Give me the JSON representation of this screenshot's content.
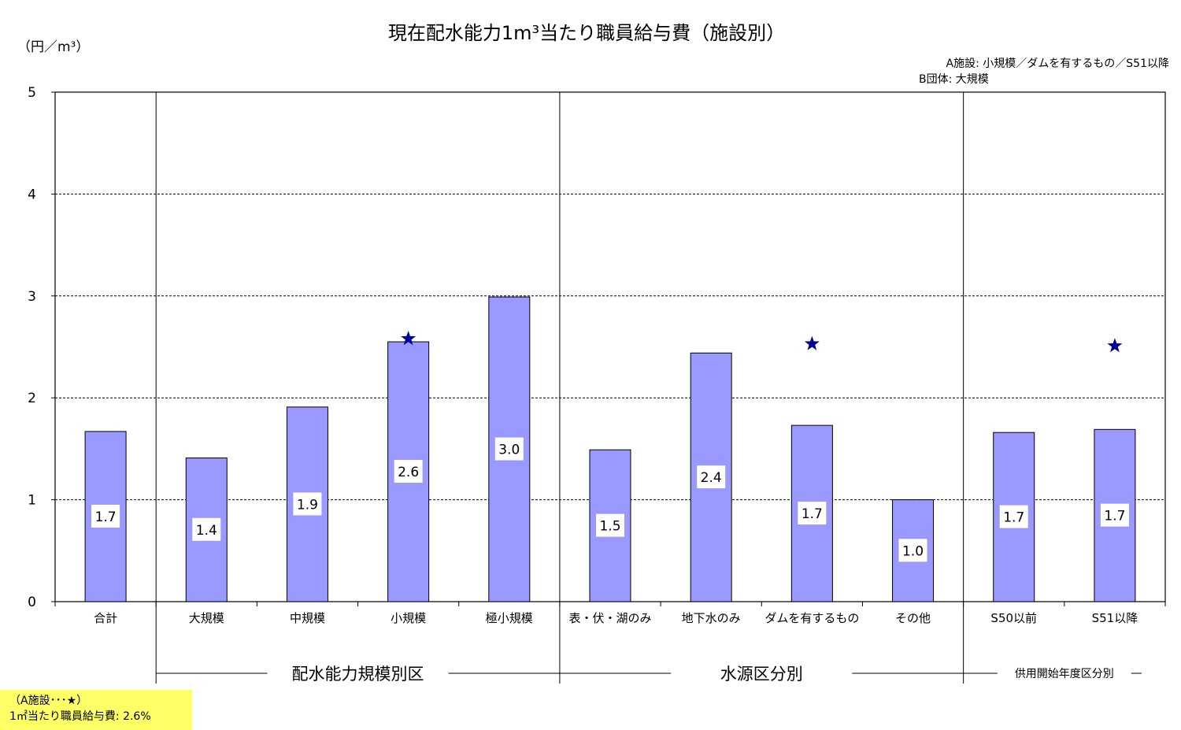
{
  "chart_data": {
    "type": "bar",
    "title": "現在配水能力1m³当たり職員給与費（施設別）",
    "ylabel": "（円／m³）",
    "ylim": [
      0,
      5
    ],
    "yticks": [
      "0",
      "1",
      "2",
      "3",
      "4",
      "5"
    ],
    "grid": true,
    "categories": [
      "合計",
      "大規模",
      "中規模",
      "小規模",
      "極小規模",
      "表・伏・湖のみ",
      "地下水のみ",
      "ダムを有するもの",
      "その他",
      "S50以前",
      "S51以降"
    ],
    "values": [
      1.67,
      1.41,
      1.91,
      2.55,
      2.99,
      1.49,
      2.44,
      1.73,
      1.0,
      1.66,
      1.69
    ],
    "data_labels": [
      "1.7",
      "1.4",
      "1.9",
      "2.6",
      "3.0",
      "1.5",
      "2.4",
      "1.7",
      "1.0",
      "1.7",
      "1.7"
    ],
    "bar_color": "#9999ff",
    "star_color": "#000099",
    "star_marker": {
      "name": "A施設",
      "points": [
        {
          "category": "小規模",
          "value": 2.58
        },
        {
          "category": "ダムを有するもの",
          "value": 2.53
        },
        {
          "category": "S51以降",
          "value": 2.51
        }
      ]
    },
    "groups": [
      {
        "label": "配水能力規模別区",
        "categories": [
          "大規模",
          "中規模",
          "小規模",
          "極小規模"
        ],
        "size": "big"
      },
      {
        "label": "水源区分別",
        "categories": [
          "表・伏・湖のみ",
          "地下水のみ",
          "ダムを有するもの",
          "その他"
        ],
        "size": "big"
      },
      {
        "label": "供用開始年度区分別",
        "categories": [
          "S50以前",
          "S51以降"
        ],
        "size": "small"
      }
    ],
    "legend_notes": [
      "A施設: 小規模／ダムを有するもの／S51以降",
      "B団体: 大規模"
    ]
  },
  "footnote": {
    "line1": "（A施設･･･★）",
    "line2": "1㎡当たり職員給与費: 2.6%"
  }
}
